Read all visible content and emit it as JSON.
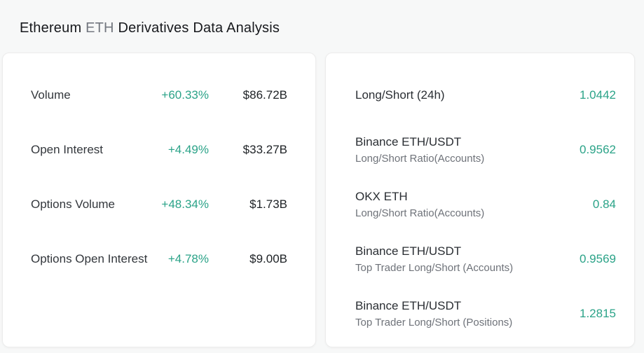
{
  "header": {
    "title_name": "Ethereum",
    "title_symbol": "ETH",
    "title_rest": "Derivatives Data Analysis"
  },
  "colors": {
    "accent_teal": "#2ba388",
    "dark_text": "#1d2125",
    "muted_text": "#6e7279",
    "page_background": "#f7f8f8",
    "card_background": "#ffffff"
  },
  "volume_card": {
    "rows": [
      {
        "label": "Volume",
        "change": "+60.33%",
        "value": "$86.72B"
      },
      {
        "label": "Open Interest",
        "change": "+4.49%",
        "value": "$33.27B"
      },
      {
        "label": "Options Volume",
        "change": "+48.34%",
        "value": "$1.73B"
      },
      {
        "label": "Options Open Interest",
        "change": "+4.78%",
        "value": "$9.00B"
      }
    ]
  },
  "ratio_card": {
    "rows": [
      {
        "label": "Long/Short (24h)",
        "sublabel": "",
        "value": "1.0442"
      },
      {
        "label": "Binance ETH/USDT",
        "sublabel": "Long/Short Ratio(Accounts)",
        "value": "0.9562"
      },
      {
        "label": "OKX ETH",
        "sublabel": "Long/Short Ratio(Accounts)",
        "value": "0.84"
      },
      {
        "label": "Binance ETH/USDT",
        "sublabel": "Top Trader Long/Short (Accounts)",
        "value": "0.9569"
      },
      {
        "label": "Binance ETH/USDT",
        "sublabel": "Top Trader Long/Short (Positions)",
        "value": "1.2815"
      }
    ]
  }
}
